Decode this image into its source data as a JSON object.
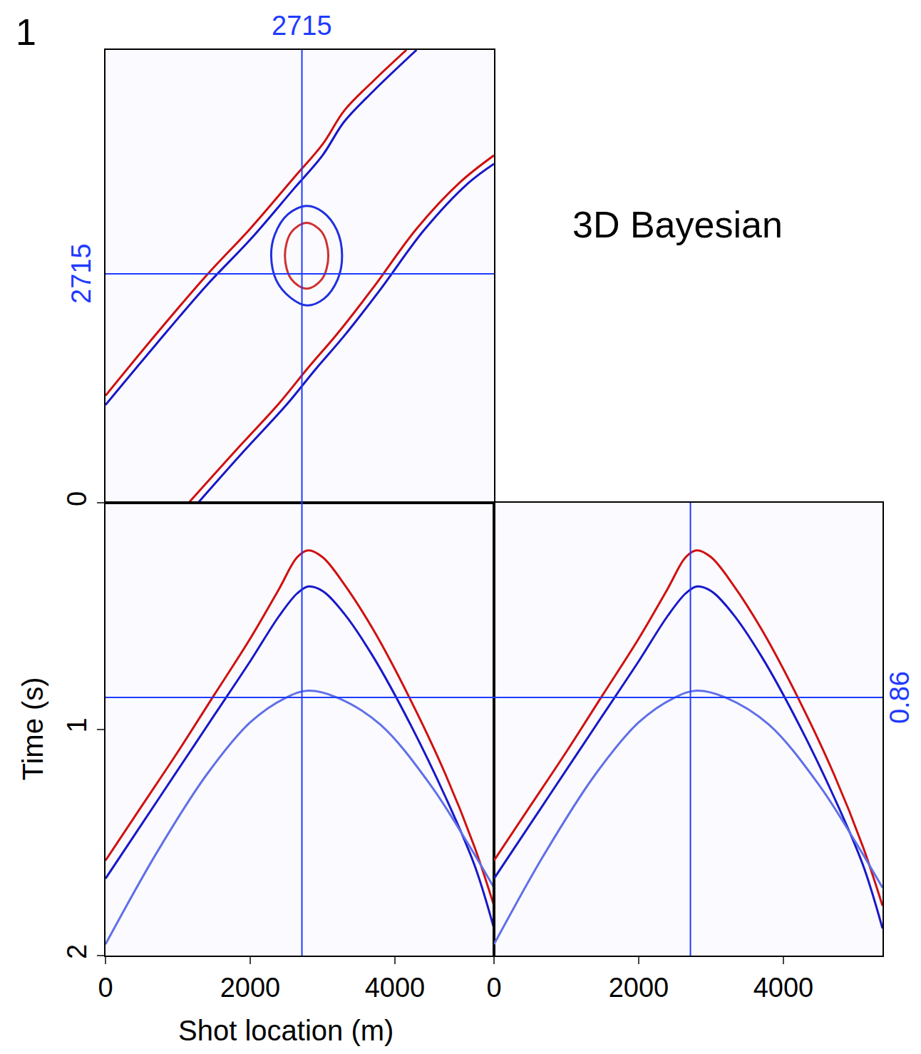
{
  "panel_label": "1",
  "title": "3D Bayesian",
  "chart_data": [
    {
      "type": "line",
      "tick_labels": false,
      "xlim": [
        0,
        5370
      ],
      "ylim": [
        0,
        5370
      ],
      "xticks": [],
      "yticks": [],
      "crosshair": {
        "x": {
          "value": 2715,
          "label": "2715"
        },
        "y": {
          "value": 2715,
          "label": "2715"
        }
      },
      "series": [
        {
          "color": "#d01010",
          "x": [
            0,
            700,
            1400,
            2000,
            2600,
            3000,
            3300,
            3700,
            4160
          ],
          "values": [
            1270,
            2000,
            2700,
            3250,
            3850,
            4250,
            4650,
            5000,
            5370
          ]
        },
        {
          "color": "#1818c8",
          "x": [
            0,
            700,
            1400,
            2000,
            2600,
            3000,
            3300,
            3700,
            4300
          ],
          "values": [
            1160,
            1880,
            2580,
            3120,
            3720,
            4120,
            4520,
            4880,
            5370
          ]
        },
        {
          "color": "#d01010",
          "x": [
            1150,
            1800,
            2400,
            2800,
            3200,
            3700,
            4300,
            4900,
            5370
          ],
          "values": [
            0,
            620,
            1180,
            1600,
            2000,
            2550,
            3250,
            3800,
            4120
          ]
        },
        {
          "color": "#1818c8",
          "x": [
            1280,
            1900,
            2500,
            2900,
            3300,
            3800,
            4400,
            5000,
            5370
          ],
          "values": [
            0,
            600,
            1160,
            1580,
            1980,
            2530,
            3230,
            3780,
            4020
          ]
        },
        {
          "color": "#2030e0",
          "x": [
            3270,
            3200,
            3000,
            2780,
            2520,
            2340,
            2290,
            2360,
            2560,
            2780,
            3020,
            3210,
            3270
          ],
          "values": [
            2930,
            3230,
            3450,
            3520,
            3420,
            3180,
            2930,
            2640,
            2430,
            2340,
            2420,
            2650,
            2930
          ]
        },
        {
          "color": "#d03030",
          "x": [
            3080,
            2990,
            2780,
            2570,
            2480,
            2570,
            2780,
            2990,
            3080
          ],
          "values": [
            2930,
            3210,
            3320,
            3210,
            2930,
            2650,
            2540,
            2650,
            2930
          ]
        }
      ]
    },
    {
      "type": "line",
      "tick_labels": true,
      "x_label": "Shot location (m)",
      "y_label": "Time (s)",
      "xlim": [
        0,
        5370
      ],
      "ylim": [
        2,
        0
      ],
      "xticks": [
        0,
        2000,
        4000
      ],
      "yticks": [
        0,
        1,
        2
      ],
      "crosshair": {
        "x": {
          "value": 2715
        },
        "y": {
          "value": 0.86
        }
      },
      "series": [
        {
          "color": "#d01010",
          "x": [
            0,
            500,
            1000,
            1500,
            2000,
            2400,
            2650,
            2800,
            3000,
            3300,
            3700,
            4200,
            4700,
            5100,
            5370
          ],
          "values": [
            1.58,
            1.34,
            1.1,
            0.85,
            0.6,
            0.38,
            0.24,
            0.21,
            0.24,
            0.36,
            0.56,
            0.86,
            1.2,
            1.52,
            1.78
          ]
        },
        {
          "color": "#1818c8",
          "x": [
            0,
            500,
            1000,
            1500,
            2000,
            2400,
            2650,
            2800,
            3000,
            3300,
            3700,
            4200,
            4700,
            5100,
            5370
          ],
          "values": [
            1.66,
            1.42,
            1.18,
            0.94,
            0.7,
            0.5,
            0.4,
            0.37,
            0.39,
            0.49,
            0.68,
            0.97,
            1.3,
            1.6,
            1.88
          ]
        },
        {
          "color": "#6070e8",
          "x": [
            0,
            700,
            1400,
            2000,
            2500,
            2800,
            3200,
            3800,
            4500,
            5000,
            5370
          ],
          "values": [
            1.95,
            1.55,
            1.2,
            0.97,
            0.86,
            0.83,
            0.86,
            0.98,
            1.25,
            1.5,
            1.7
          ]
        }
      ]
    },
    {
      "type": "line",
      "tick_labels": "x",
      "xlim": [
        0,
        5370
      ],
      "ylim": [
        2,
        0
      ],
      "xticks": [
        0,
        2000,
        4000
      ],
      "yticks": [],
      "crosshair": {
        "x": {
          "value": 2715
        },
        "y": {
          "value": 0.86,
          "label": "0.86"
        }
      },
      "series": [
        {
          "color": "#d01010",
          "x": [
            0,
            500,
            1000,
            1500,
            2000,
            2400,
            2650,
            2800,
            3000,
            3300,
            3700,
            4200,
            4700,
            5100,
            5370
          ],
          "values": [
            1.58,
            1.34,
            1.1,
            0.85,
            0.6,
            0.38,
            0.24,
            0.21,
            0.24,
            0.36,
            0.56,
            0.86,
            1.2,
            1.52,
            1.78
          ]
        },
        {
          "color": "#1818c8",
          "x": [
            0,
            500,
            1000,
            1500,
            2000,
            2400,
            2650,
            2800,
            3000,
            3300,
            3700,
            4200,
            4700,
            5100,
            5370
          ],
          "values": [
            1.66,
            1.42,
            1.18,
            0.94,
            0.7,
            0.5,
            0.4,
            0.37,
            0.39,
            0.49,
            0.68,
            0.97,
            1.3,
            1.6,
            1.88
          ]
        },
        {
          "color": "#6070e8",
          "x": [
            0,
            700,
            1400,
            2000,
            2500,
            2800,
            3200,
            3800,
            4500,
            5000,
            5370
          ],
          "values": [
            1.95,
            1.55,
            1.2,
            0.97,
            0.86,
            0.83,
            0.86,
            0.98,
            1.25,
            1.5,
            1.7
          ]
        }
      ]
    }
  ]
}
